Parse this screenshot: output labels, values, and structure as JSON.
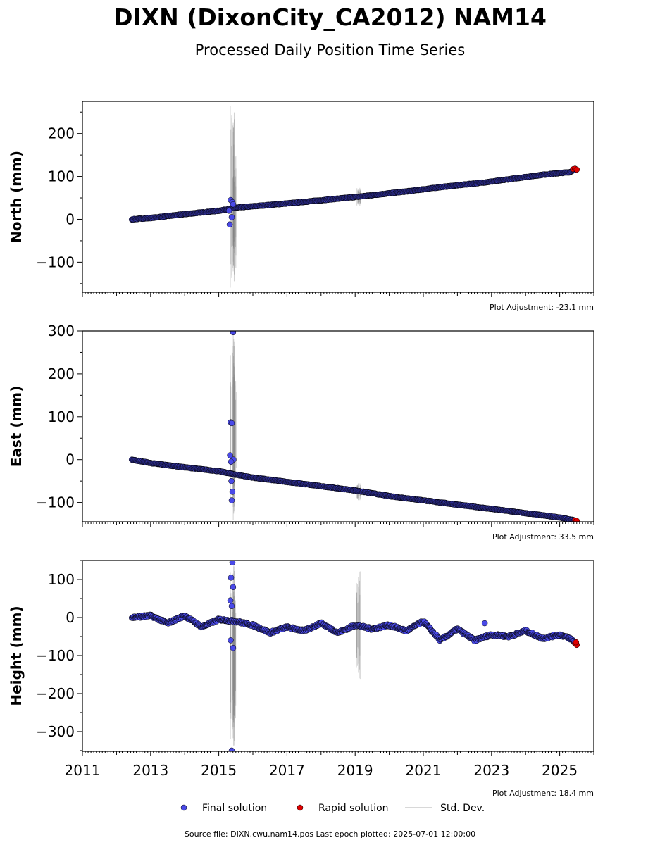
{
  "title": "DIXN (DixonCity_CA2012) NAM14",
  "subtitle": "Processed Daily Position Time Series",
  "footer": "Source file: DIXN.cwu.nam14.pos  Last epoch plotted: 2025-07-01 12:00:00",
  "legend": {
    "final": "Final solution",
    "rapid": "Rapid solution",
    "std": "Std. Dev."
  },
  "colors": {
    "final": "#4a4ae8",
    "rapid": "#e00000",
    "std": "#808080",
    "edge": "#000000"
  },
  "chart_data": [
    {
      "type": "scatter",
      "ylabel": "North (mm)",
      "xlim": [
        2011,
        2026
      ],
      "ylim": [
        -170,
        275
      ],
      "yticks": [
        -100,
        0,
        100,
        200
      ],
      "xticks": [
        2011,
        2013,
        2015,
        2017,
        2019,
        2021,
        2023,
        2025
      ],
      "show_xtick_labels": false,
      "adjustment": "Plot Adjustment: -23.1 mm",
      "final_trend": [
        [
          2012.45,
          0
        ],
        [
          2013.0,
          3
        ],
        [
          2014.0,
          12
        ],
        [
          2015.0,
          20
        ],
        [
          2015.5,
          27
        ],
        [
          2017.0,
          37
        ],
        [
          2019.0,
          52
        ],
        [
          2020.5,
          65
        ],
        [
          2021.5,
          75
        ],
        [
          2023.0,
          88
        ],
        [
          2024.5,
          104
        ],
        [
          2025.3,
          110
        ],
        [
          2025.45,
          117
        ]
      ],
      "final_outliers": [
        [
          2015.35,
          45
        ],
        [
          2015.4,
          40
        ],
        [
          2015.3,
          20
        ],
        [
          2015.38,
          5
        ],
        [
          2015.32,
          -12
        ],
        [
          2015.42,
          35
        ]
      ],
      "rapid_points": [
        [
          2025.4,
          117
        ],
        [
          2025.45,
          118
        ],
        [
          2025.5,
          116
        ]
      ],
      "std_bursts": [
        [
          2015.4,
          275,
          -170
        ],
        [
          2015.45,
          155,
          -120
        ],
        [
          2019.1,
          75,
          30
        ]
      ]
    },
    {
      "type": "scatter",
      "ylabel": "East (mm)",
      "xlim": [
        2011,
        2026
      ],
      "ylim": [
        -145,
        300
      ],
      "yticks": [
        -100,
        0,
        100,
        200,
        300
      ],
      "xticks": [
        2011,
        2013,
        2015,
        2017,
        2019,
        2021,
        2023,
        2025
      ],
      "show_xtick_labels": false,
      "adjustment": "Plot Adjustment: 33.5 mm",
      "final_trend": [
        [
          2012.45,
          0
        ],
        [
          2013.0,
          -8
        ],
        [
          2014.0,
          -18
        ],
        [
          2015.0,
          -27
        ],
        [
          2015.5,
          -35
        ],
        [
          2016.0,
          -42
        ],
        [
          2017.0,
          -52
        ],
        [
          2018.0,
          -62
        ],
        [
          2019.0,
          -72
        ],
        [
          2020.0,
          -85
        ],
        [
          2021.0,
          -95
        ],
        [
          2022.0,
          -105
        ],
        [
          2023.0,
          -115
        ],
        [
          2024.0,
          -125
        ],
        [
          2025.0,
          -135
        ],
        [
          2025.45,
          -142
        ]
      ],
      "final_outliers": [
        [
          2015.42,
          297
        ],
        [
          2015.35,
          87
        ],
        [
          2015.38,
          85
        ],
        [
          2015.33,
          10
        ],
        [
          2015.37,
          -50
        ],
        [
          2015.4,
          -75
        ],
        [
          2015.38,
          -95
        ],
        [
          2015.43,
          0
        ],
        [
          2015.36,
          -5
        ]
      ],
      "rapid_points": [
        [
          2025.45,
          -142
        ],
        [
          2025.5,
          -143
        ]
      ],
      "std_bursts": [
        [
          2015.4,
          300,
          -145
        ],
        [
          2015.45,
          240,
          -100
        ],
        [
          2019.1,
          -55,
          -95
        ]
      ]
    },
    {
      "type": "scatter",
      "ylabel": "Height (mm)",
      "xlim": [
        2011,
        2026
      ],
      "ylim": [
        -352,
        150
      ],
      "yticks": [
        -300,
        -200,
        -100,
        0,
        100
      ],
      "xticks": [
        2011,
        2013,
        2015,
        2017,
        2019,
        2021,
        2023,
        2025
      ],
      "show_xtick_labels": true,
      "adjustment": "Plot Adjustment: 18.4 mm",
      "final_trend": [
        [
          2012.45,
          0
        ],
        [
          2013.0,
          5
        ],
        [
          2013.5,
          -15
        ],
        [
          2014.0,
          5
        ],
        [
          2014.5,
          -25
        ],
        [
          2015.0,
          -5
        ],
        [
          2015.5,
          -10
        ],
        [
          2016.0,
          -20
        ],
        [
          2016.5,
          -40
        ],
        [
          2017.0,
          -25
        ],
        [
          2017.5,
          -35
        ],
        [
          2018.0,
          -15
        ],
        [
          2018.5,
          -40
        ],
        [
          2019.0,
          -20
        ],
        [
          2019.5,
          -30
        ],
        [
          2020.0,
          -20
        ],
        [
          2020.5,
          -35
        ],
        [
          2021.0,
          -10
        ],
        [
          2021.5,
          -60
        ],
        [
          2022.0,
          -30
        ],
        [
          2022.5,
          -60
        ],
        [
          2023.0,
          -45
        ],
        [
          2023.5,
          -50
        ],
        [
          2024.0,
          -35
        ],
        [
          2024.5,
          -55
        ],
        [
          2025.0,
          -45
        ],
        [
          2025.3,
          -55
        ],
        [
          2025.45,
          -65
        ]
      ],
      "final_outliers": [
        [
          2015.4,
          145
        ],
        [
          2015.36,
          105
        ],
        [
          2015.42,
          80
        ],
        [
          2015.34,
          45
        ],
        [
          2015.38,
          30
        ],
        [
          2015.35,
          -60
        ],
        [
          2015.42,
          -80
        ],
        [
          2015.38,
          -350
        ],
        [
          2022.8,
          -15
        ]
      ],
      "rapid_points": [
        [
          2025.45,
          -68
        ],
        [
          2025.5,
          -72
        ],
        [
          2025.48,
          -65
        ]
      ],
      "std_bursts": [
        [
          2015.4,
          150,
          -352
        ],
        [
          2015.45,
          80,
          -300
        ],
        [
          2019.1,
          125,
          -165
        ]
      ]
    }
  ]
}
